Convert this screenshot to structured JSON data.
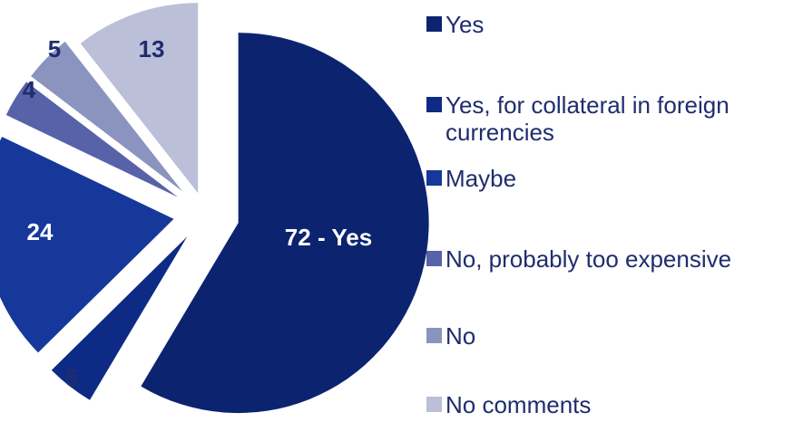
{
  "chart_data": {
    "type": "pie",
    "title": "",
    "categories": [
      "Yes",
      "Yes, for collateral in foreign currencies",
      "Maybe",
      "No, probably too expensive",
      "No",
      "No comments"
    ],
    "values": [
      72,
      5,
      24,
      4,
      5,
      13
    ],
    "data_labels": [
      "72 - Yes",
      "5",
      "24",
      "4",
      "5",
      "13"
    ],
    "colors": [
      "#0c2470",
      "#0d2a85",
      "#16389a",
      "#5762a8",
      "#8b94bf",
      "#bbbfd8"
    ],
    "legend": {
      "placement": "right",
      "entries": [
        {
          "label": "Yes",
          "color": "#0c2470"
        },
        {
          "label": "Yes, for collateral in foreign currencies",
          "color": "#0d2a85"
        },
        {
          "label": "Maybe",
          "color": "#16389a"
        },
        {
          "label": "No, probably too expensive",
          "color": "#5762a8"
        },
        {
          "label": "No",
          "color": "#8b94bf"
        },
        {
          "label": "No comments",
          "color": "#bbbfd8"
        }
      ]
    },
    "exploded": true
  }
}
